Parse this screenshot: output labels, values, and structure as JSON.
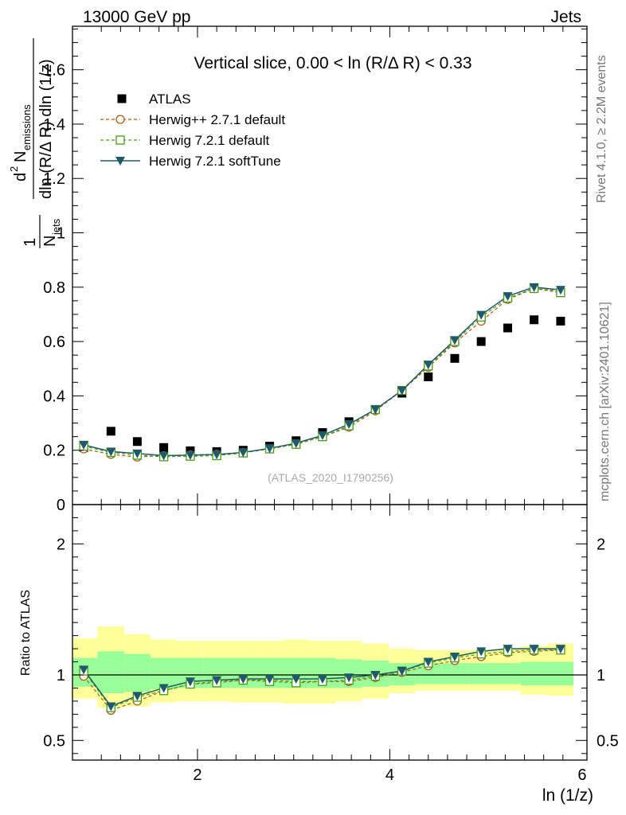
{
  "header": {
    "left": "13000 GeV pp",
    "right": "Jets"
  },
  "side": {
    "top": "Rivet 4.1.0, ≥ 2.2M events",
    "bottom": "mcplots.cern.ch [arXiv:2401.10621]"
  },
  "watermark": "(ATLAS_2020_I1790256)",
  "colors": {
    "data": "#000000",
    "herwigpp": "#b05a10",
    "herwig721": "#4a9a1a",
    "softtune": "#1f5a6a",
    "band_outer": "#ffff99",
    "band_inner": "#99ff99"
  },
  "chart_data": [
    {
      "type": "scatter",
      "title": "Vertical slice, 0.00 < ln (R/Δ R) < 0.33",
      "xlabel": "ln (1/z)",
      "ylabel_parts": {
        "frac_num": "1",
        "frac_den": "N",
        "frac_den_sub": "jets",
        "d2": "d",
        "d2_sup": "2",
        "n": "N",
        "n_sub": "emissions",
        "den": "dln (R/Δ R) dln (1/z)"
      },
      "xlim": [
        0.7,
        6.05
      ],
      "ylim": [
        0,
        1.76
      ],
      "yticks": [
        0,
        0.2,
        0.4,
        0.6,
        0.8,
        1,
        1.2,
        1.4,
        1.6
      ],
      "ytick_labels": [
        "0",
        "0.2",
        "0.4",
        "0.6",
        "0.8",
        "1",
        "1.2",
        "1.4",
        "1.6"
      ],
      "x": [
        0.817,
        1.1,
        1.374,
        1.649,
        1.925,
        2.2,
        2.475,
        2.75,
        3.025,
        3.3,
        3.575,
        3.85,
        4.126,
        4.4,
        4.675,
        4.95,
        5.226,
        5.5,
        5.776
      ],
      "legend": [
        "ATLAS",
        "Herwig++ 2.7.1 default",
        "Herwig 7.2.1 default",
        "Herwig 7.2.1 softTune"
      ],
      "series": [
        {
          "name": "ATLAS",
          "values": [
            0.21,
            0.27,
            0.232,
            0.21,
            0.198,
            0.195,
            0.2,
            0.215,
            0.235,
            0.265,
            0.305,
            0.35,
            0.41,
            0.47,
            0.538,
            0.6,
            0.65,
            0.68,
            0.675
          ]
        },
        {
          "name": "Herwig++ 2.7.1 default",
          "values": [
            0.205,
            0.185,
            0.175,
            0.18,
            0.183,
            0.185,
            0.192,
            0.205,
            0.222,
            0.25,
            0.285,
            0.345,
            0.42,
            0.505,
            0.595,
            0.675,
            0.755,
            0.795,
            0.785
          ]
        },
        {
          "name": "Herwig 7.2.1 default",
          "values": [
            0.215,
            0.192,
            0.182,
            0.176,
            0.178,
            0.18,
            0.19,
            0.205,
            0.222,
            0.25,
            0.29,
            0.35,
            0.42,
            0.51,
            0.6,
            0.69,
            0.76,
            0.795,
            0.78
          ]
        },
        {
          "name": "Herwig 7.2.1 softTune",
          "values": [
            0.22,
            0.195,
            0.188,
            0.18,
            0.182,
            0.184,
            0.192,
            0.207,
            0.226,
            0.255,
            0.296,
            0.35,
            0.42,
            0.515,
            0.605,
            0.698,
            0.767,
            0.8,
            0.79
          ]
        }
      ]
    },
    {
      "type": "line",
      "ylabel": "Ratio to ATLAS",
      "xlabel": "ln (1/z)",
      "xlim": [
        0.7,
        6.05
      ],
      "ylim": [
        0.35,
        2.3
      ],
      "yticks": [
        0.5,
        1,
        2
      ],
      "ytick_labels": [
        "0.5",
        "1",
        "2"
      ],
      "xticks": [
        2,
        4,
        6
      ],
      "xtick_labels": [
        "2",
        "4",
        "6"
      ],
      "x": [
        0.817,
        1.1,
        1.374,
        1.649,
        1.925,
        2.2,
        2.475,
        2.75,
        3.025,
        3.3,
        3.575,
        3.85,
        4.126,
        4.4,
        4.675,
        4.95,
        5.226,
        5.5,
        5.776
      ],
      "bin_edges": [
        0.7,
        0.96,
        1.24,
        1.51,
        1.79,
        2.06,
        2.34,
        2.61,
        2.89,
        3.16,
        3.44,
        3.71,
        3.99,
        4.26,
        4.54,
        4.81,
        5.09,
        5.36,
        5.64,
        5.91
      ],
      "band_outer": [
        [
          0.82,
          1.28
        ],
        [
          0.75,
          1.37
        ],
        [
          0.76,
          1.31
        ],
        [
          0.79,
          1.27
        ],
        [
          0.8,
          1.26
        ],
        [
          0.8,
          1.26
        ],
        [
          0.79,
          1.26
        ],
        [
          0.79,
          1.26
        ],
        [
          0.78,
          1.27
        ],
        [
          0.78,
          1.26
        ],
        [
          0.8,
          1.26
        ],
        [
          0.82,
          1.24
        ],
        [
          0.86,
          1.2
        ],
        [
          0.88,
          1.19
        ],
        [
          0.88,
          1.19
        ],
        [
          0.88,
          1.19
        ],
        [
          0.88,
          1.2
        ],
        [
          0.85,
          1.22
        ],
        [
          0.84,
          1.24
        ]
      ],
      "band_inner": [
        [
          0.91,
          1.13
        ],
        [
          0.86,
          1.18
        ],
        [
          0.87,
          1.16
        ],
        [
          0.89,
          1.13
        ],
        [
          0.9,
          1.13
        ],
        [
          0.9,
          1.13
        ],
        [
          0.9,
          1.13
        ],
        [
          0.9,
          1.13
        ],
        [
          0.9,
          1.13
        ],
        [
          0.9,
          1.13
        ],
        [
          0.9,
          1.12
        ],
        [
          0.91,
          1.11
        ],
        [
          0.92,
          1.09
        ],
        [
          0.93,
          1.09
        ],
        [
          0.93,
          1.09
        ],
        [
          0.93,
          1.09
        ],
        [
          0.93,
          1.09
        ],
        [
          0.92,
          1.1
        ],
        [
          0.92,
          1.1
        ]
      ],
      "series": [
        {
          "name": "Herwig++ 2.7.1 default",
          "values": [
            0.99,
            0.73,
            0.8,
            0.88,
            0.93,
            0.95,
            0.96,
            0.96,
            0.95,
            0.95,
            0.95,
            0.98,
            1.02,
            1.07,
            1.11,
            1.14,
            1.17,
            1.18,
            1.19
          ]
        },
        {
          "name": "Herwig 7.2.1 default",
          "values": [
            1.03,
            0.75,
            0.83,
            0.88,
            0.93,
            0.94,
            0.96,
            0.95,
            0.94,
            0.95,
            0.96,
            0.99,
            1.03,
            1.09,
            1.13,
            1.16,
            1.18,
            1.19,
            1.19
          ]
        },
        {
          "name": "Herwig 7.2.1 softTune",
          "values": [
            1.04,
            0.76,
            0.84,
            0.9,
            0.95,
            0.96,
            0.97,
            0.97,
            0.97,
            0.97,
            0.98,
            1.0,
            1.03,
            1.1,
            1.14,
            1.18,
            1.2,
            1.2,
            1.2
          ]
        }
      ]
    }
  ]
}
